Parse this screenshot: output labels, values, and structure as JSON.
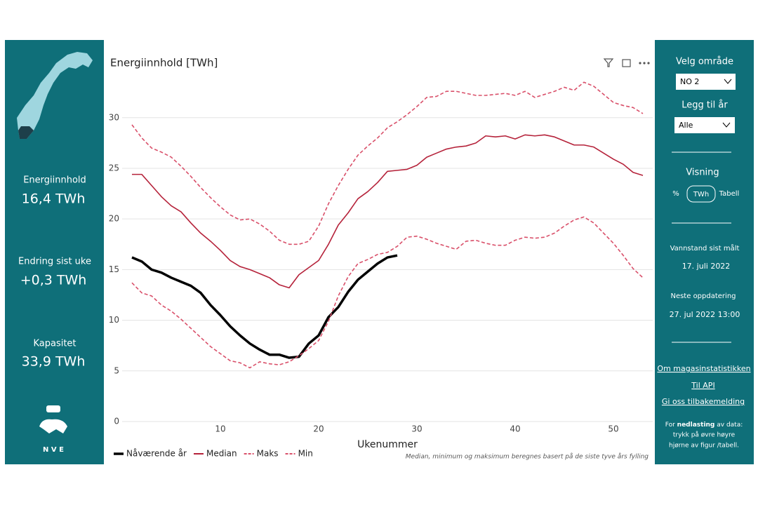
{
  "left_panel": {
    "kpis": [
      {
        "label": "Energiinnhold",
        "value": "16,4 TWh"
      },
      {
        "label": "Endring sist uke",
        "value": "+0,3 TWh"
      },
      {
        "label": "Kapasitet",
        "value": "33,9 TWh"
      }
    ],
    "logo": "N V E"
  },
  "right_panel": {
    "area_label": "Velg område",
    "area_value": "NO 2",
    "year_label": "Legg til år",
    "year_value": "Alle",
    "view_label": "Visning",
    "view_options": [
      "%",
      "TWh",
      "Tabell"
    ],
    "measured_label": "Vannstand sist målt",
    "measured_date": "17. juli 2022",
    "next_label": "Neste oppdatering",
    "next_date": "27. jul 2022 13:00",
    "links": [
      "Om magasinstatistikken",
      "Til API",
      "Gi oss tilbakemelding"
    ],
    "download_note": [
      "For ",
      "nedlasting",
      " av data:",
      "trykk på øvre høyre",
      "hjørne av figur /tabell."
    ]
  },
  "chart_data": {
    "type": "line",
    "title": "Energiinnhold [TWh]",
    "x_label": "Ukenummer",
    "note": "Median, minimum og maksimum beregnes basert på de siste tyve års fylling",
    "x": [
      1,
      2,
      3,
      4,
      5,
      6,
      7,
      8,
      9,
      10,
      11,
      12,
      13,
      14,
      15,
      16,
      17,
      18,
      19,
      20,
      21,
      22,
      23,
      24,
      25,
      26,
      27,
      28,
      29,
      30,
      31,
      32,
      33,
      34,
      35,
      36,
      37,
      38,
      39,
      40,
      41,
      42,
      43,
      44,
      45,
      46,
      47,
      48,
      49,
      50,
      51,
      52,
      53
    ],
    "series": [
      {
        "name": "Nåværende år",
        "color": "#000000",
        "dashed": false,
        "values": [
          16.2,
          15.8,
          15.0,
          14.7,
          14.2,
          13.8,
          13.4,
          12.7,
          11.5,
          10.5,
          9.4,
          8.5,
          7.7,
          7.1,
          6.6,
          6.6,
          6.3,
          6.4,
          7.7,
          8.5,
          10.3,
          11.3,
          12.8,
          14.0,
          14.8,
          15.6,
          16.2,
          16.4,
          null,
          null,
          null,
          null,
          null,
          null,
          null,
          null,
          null,
          null,
          null,
          null,
          null,
          null,
          null,
          null,
          null,
          null,
          null,
          null,
          null,
          null,
          null,
          null,
          null
        ]
      },
      {
        "name": "Median",
        "color": "#b5223a",
        "dashed": false,
        "values": [
          24.4,
          24.4,
          23.3,
          22.2,
          21.3,
          20.7,
          19.6,
          18.6,
          17.8,
          16.9,
          15.9,
          15.3,
          15.0,
          14.6,
          14.2,
          13.5,
          13.2,
          14.5,
          15.2,
          15.9,
          17.5,
          19.4,
          20.6,
          22.0,
          22.7,
          23.6,
          24.7,
          24.8,
          24.9,
          25.3,
          26.1,
          26.5,
          26.9,
          27.1,
          27.2,
          27.5,
          28.2,
          28.1,
          28.2,
          27.9,
          28.3,
          28.2,
          28.3,
          28.1,
          27.7,
          27.3,
          27.3,
          27.1,
          26.5,
          25.9,
          25.4,
          24.6,
          24.3
        ]
      },
      {
        "name": "Maks",
        "color": "#d9506a",
        "dashed": true,
        "values": [
          29.3,
          28.0,
          27.0,
          26.6,
          26.1,
          25.2,
          24.2,
          23.1,
          22.1,
          21.2,
          20.4,
          19.9,
          20.0,
          19.5,
          18.8,
          17.9,
          17.5,
          17.5,
          17.8,
          19.3,
          21.5,
          23.3,
          24.9,
          26.3,
          27.2,
          28.0,
          29.0,
          29.6,
          30.3,
          31.1,
          32.0,
          32.1,
          32.6,
          32.6,
          32.4,
          32.2,
          32.2,
          32.3,
          32.4,
          32.2,
          32.6,
          32.0,
          32.3,
          32.6,
          33.0,
          32.7,
          33.5,
          33.1,
          32.3,
          31.5,
          31.2,
          31.0,
          30.4
        ]
      },
      {
        "name": "Min",
        "color": "#d9506a",
        "dashed": true,
        "values": [
          13.7,
          12.7,
          12.4,
          11.5,
          10.9,
          10.1,
          9.2,
          8.3,
          7.4,
          6.7,
          6.0,
          5.8,
          5.3,
          5.9,
          5.7,
          5.6,
          5.9,
          6.5,
          7.2,
          8.0,
          9.9,
          12.4,
          14.3,
          15.6,
          16.0,
          16.5,
          16.7,
          17.3,
          18.2,
          18.3,
          18.0,
          17.6,
          17.3,
          17.0,
          17.8,
          17.9,
          17.6,
          17.4,
          17.4,
          17.9,
          18.2,
          18.1,
          18.2,
          18.6,
          19.3,
          19.9,
          20.2,
          19.6,
          18.6,
          17.6,
          16.4,
          15.1,
          14.2
        ]
      }
    ],
    "xlim": [
      0,
      54
    ],
    "xticks": [
      10,
      20,
      30,
      40,
      50
    ],
    "ylim": [
      0,
      34
    ],
    "yticks": [
      0,
      5,
      10,
      15,
      20,
      25,
      30
    ],
    "grid": true,
    "legend": "bottom-left"
  }
}
